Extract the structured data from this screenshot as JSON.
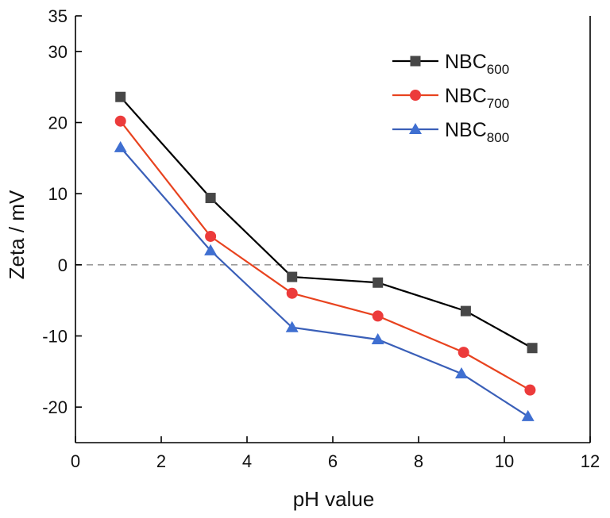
{
  "chart_data": {
    "type": "line",
    "title": "",
    "xlabel": "pH value",
    "ylabel": "Zeta / mV",
    "xlim": [
      0,
      12
    ],
    "ylim": [
      -25,
      35
    ],
    "x_ticks": [
      0,
      2,
      4,
      6,
      8,
      10,
      12
    ],
    "y_ticks": [
      -20,
      -10,
      0,
      10,
      20,
      30,
      35
    ],
    "reference_line": {
      "y": 0,
      "style": "dashed",
      "color": "#9a9a9a"
    },
    "grid": false,
    "legend_position": "top-right",
    "series": [
      {
        "name": "NBC600",
        "name_base": "NBC",
        "name_sub": "600",
        "marker": "square",
        "line_color": "#000000",
        "marker_color": "#474747",
        "x": [
          1.05,
          3.15,
          5.05,
          7.05,
          9.1,
          10.65
        ],
        "y": [
          23.6,
          9.4,
          -1.7,
          -2.5,
          -6.5,
          -11.7
        ]
      },
      {
        "name": "NBC700",
        "name_base": "NBC",
        "name_sub": "700",
        "marker": "circle",
        "line_color": "#e8431f",
        "marker_color": "#ec3b3b",
        "x": [
          1.05,
          3.15,
          5.05,
          7.05,
          9.05,
          10.6
        ],
        "y": [
          20.2,
          4.0,
          -4.0,
          -7.2,
          -12.3,
          -17.6
        ]
      },
      {
        "name": "NBC800",
        "name_base": "NBC",
        "name_sub": "800",
        "marker": "triangle",
        "line_color": "#3a5fb8",
        "marker_color": "#3f6fd1",
        "x": [
          1.05,
          3.15,
          5.05,
          7.05,
          9.0,
          10.55
        ],
        "y": [
          16.5,
          2.0,
          -8.8,
          -10.5,
          -15.3,
          -21.3
        ]
      }
    ]
  }
}
